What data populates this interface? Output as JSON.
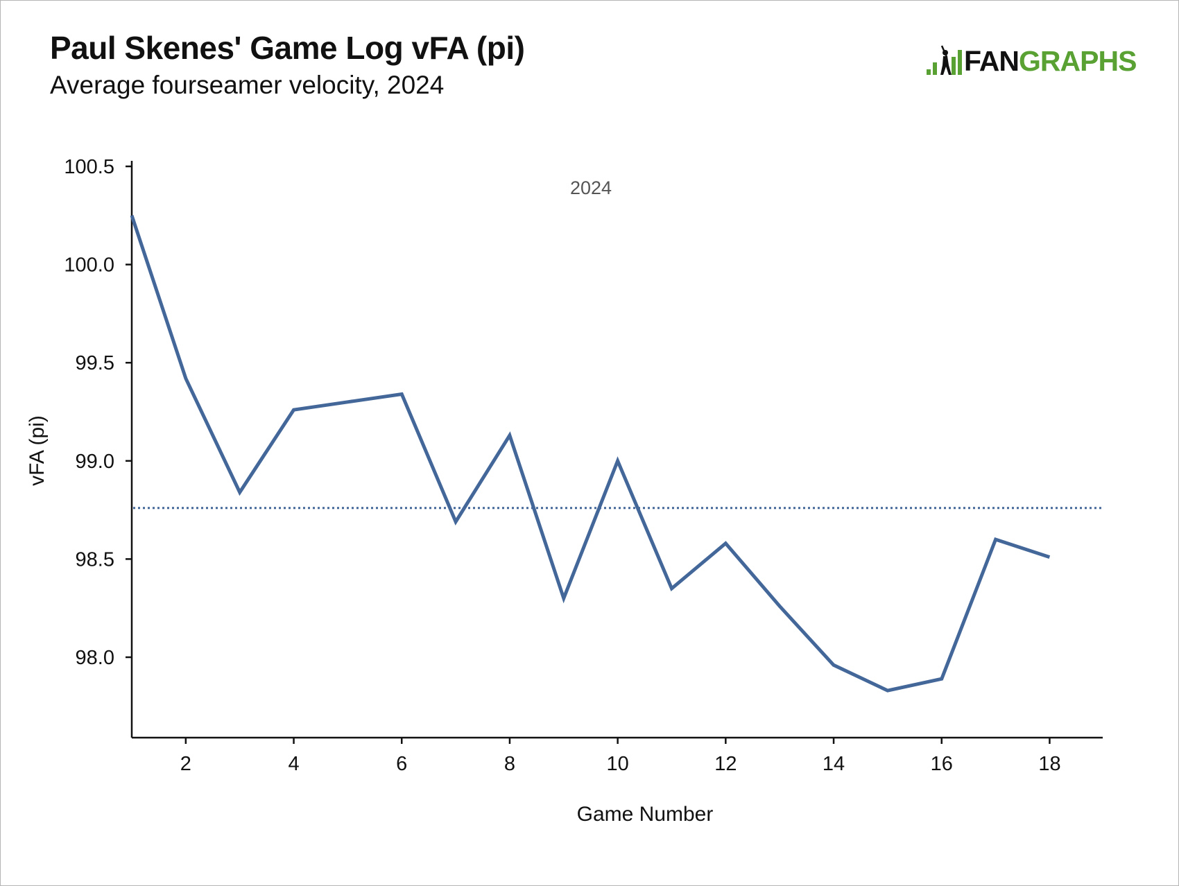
{
  "header": {
    "title": "Paul Skenes' Game Log vFA (pi)",
    "subtitle": "Average fourseamer velocity, 2024"
  },
  "logo": {
    "part1": "FAN",
    "part2": "GRAPHS",
    "icon": "fangraphs-batter-bars-icon",
    "colors": {
      "dark": "#111111",
      "green": "#5aa133"
    }
  },
  "colors": {
    "line": "#44679a",
    "axis": "#111111",
    "reference_line": "#44679a"
  },
  "chart_data": {
    "type": "line",
    "title": "Paul Skenes' Game Log vFA (pi)",
    "subtitle": "Average fourseamer velocity, 2024",
    "xlabel": "Game Number",
    "ylabel": "vFA (pi)",
    "annotation": "2024",
    "x_ticks": [
      2,
      4,
      6,
      8,
      10,
      12,
      14,
      16,
      18
    ],
    "y_ticks": [
      "98.0",
      "98.5",
      "99.0",
      "99.5",
      "100.0",
      "100.5"
    ],
    "xlim": [
      1,
      19
    ],
    "ylim": [
      97.6,
      100.5
    ],
    "grid": false,
    "series": [
      {
        "x": [
          1,
          2,
          3,
          4,
          5,
          6,
          7,
          8,
          9,
          10,
          11,
          12,
          13,
          14,
          15,
          16,
          17,
          18
        ],
        "values": [
          100.25,
          99.42,
          98.84,
          99.26,
          99.3,
          99.34,
          98.69,
          99.13,
          98.3,
          99.0,
          98.35,
          98.58,
          98.26,
          97.96,
          97.83,
          97.89,
          98.6,
          98.51
        ]
      }
    ],
    "reference_line": {
      "y": 98.76,
      "style": "dotted"
    }
  }
}
